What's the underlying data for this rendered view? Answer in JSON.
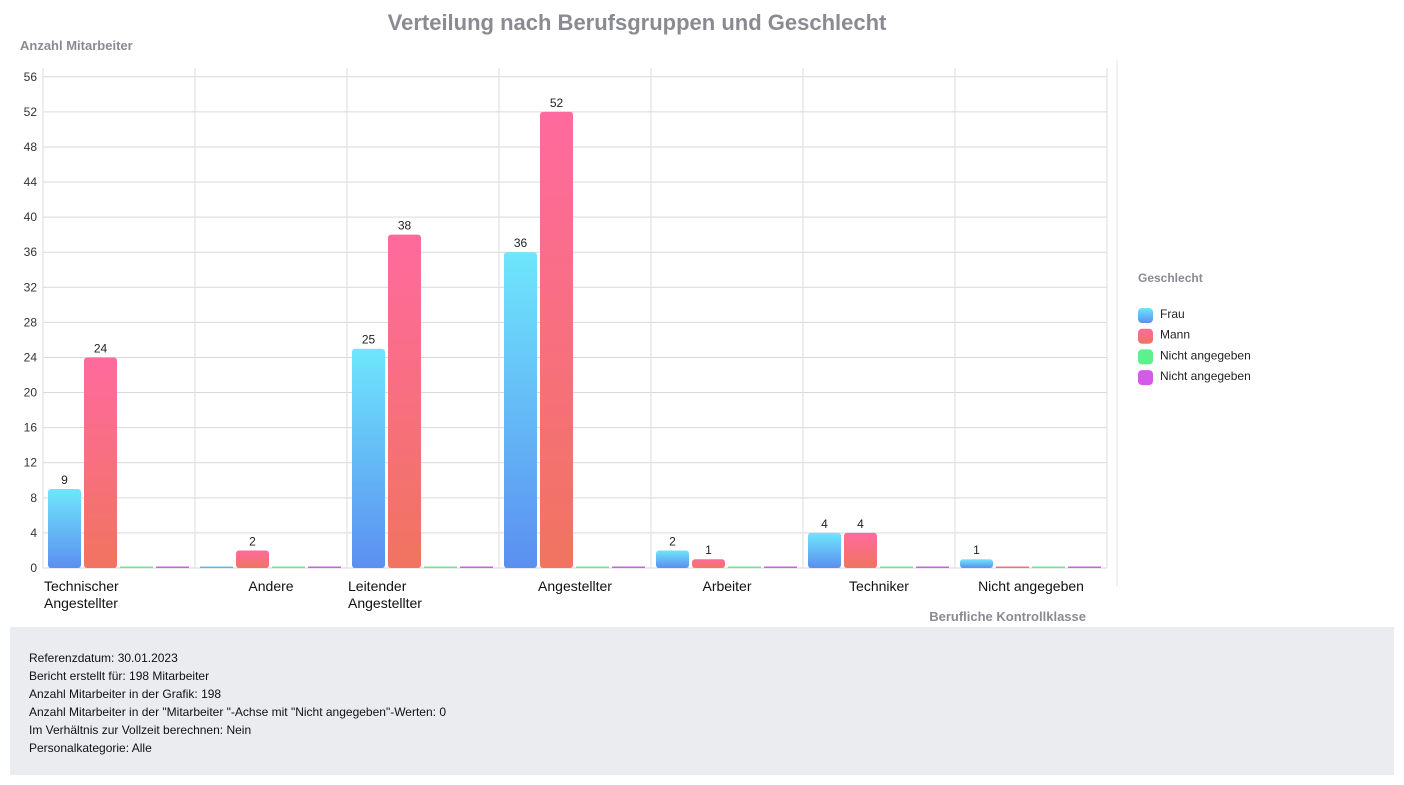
{
  "chart_data": {
    "type": "bar",
    "title": "Verteilung nach Berufsgruppen und Geschlecht",
    "ylabel": "Anzahl Mitarbeiter",
    "xlabel": "Berufliche Kontrollklasse",
    "ylim": [
      0,
      57
    ],
    "yticks": [
      0,
      4,
      8,
      12,
      16,
      20,
      24,
      28,
      32,
      36,
      40,
      44,
      48,
      52,
      56
    ],
    "categories": [
      [
        "Technischer",
        "Angestellter"
      ],
      [
        "Andere"
      ],
      [
        "Leitender",
        "Angestellter"
      ],
      [
        "Angestellter"
      ],
      [
        "Arbeiter"
      ],
      [
        "Techniker"
      ],
      [
        "Nicht angegeben"
      ]
    ],
    "series": [
      {
        "name": "Frau",
        "values": [
          9,
          0,
          25,
          36,
          2,
          4,
          1
        ],
        "color_top": "#6ee6fb",
        "color_bottom": "#5b8ff0"
      },
      {
        "name": "Mann",
        "values": [
          24,
          2,
          38,
          52,
          1,
          4,
          0
        ],
        "color_top": "#ff6a9e",
        "color_bottom": "#f07460"
      },
      {
        "name": "Nicht angegeben",
        "values": [
          0,
          0,
          0,
          0,
          0,
          0,
          0
        ],
        "color_top": "#5ef08c",
        "color_bottom": "#5ef08c"
      },
      {
        "name": "Nicht angegeben",
        "values": [
          0,
          0,
          0,
          0,
          0,
          0,
          0
        ],
        "color_top": "#d45be8",
        "color_bottom": "#d45be8"
      }
    ],
    "grid": true,
    "legend": {
      "title": "Geschlecht",
      "placement": "right"
    }
  },
  "info": [
    "Referenzdatum: 30.01.2023",
    "Bericht erstellt für: 198 Mitarbeiter",
    "Anzahl Mitarbeiter in der Grafik: 198",
    "Anzahl Mitarbeiter in der \"Mitarbeiter \"-Achse mit \"Nicht angegeben\"-Werten: 0",
    "Im Verhältnis zur Vollzeit berechnen: Nein",
    "Personalkategorie: Alle"
  ]
}
